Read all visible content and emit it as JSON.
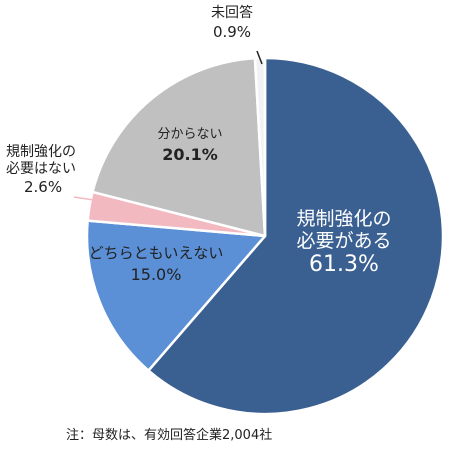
{
  "chart_data": {
    "type": "pie",
    "title": "",
    "slices": [
      {
        "label_lines": [
          "規制強化の",
          "必要がある"
        ],
        "percent_text": "61.3%",
        "value": 61.3,
        "color": "#3a5f91"
      },
      {
        "label_lines": [
          "どちらともいえない"
        ],
        "percent_text": "15.0%",
        "value": 15.0,
        "color": "#5b8fd6"
      },
      {
        "label_lines": [
          "規制強化の",
          "必要はない"
        ],
        "percent_text": "2.6%",
        "value": 2.6,
        "color": "#f3b9c0"
      },
      {
        "label_lines": [
          "分からない"
        ],
        "percent_text": "20.1%",
        "value": 20.1,
        "color": "#c0c0c0"
      },
      {
        "label_lines": [
          "未回答"
        ],
        "percent_text": "0.9%",
        "value": 0.9,
        "color": "#f2f2f2"
      }
    ]
  },
  "note": "注：母数は、有効回答企業2,004社"
}
